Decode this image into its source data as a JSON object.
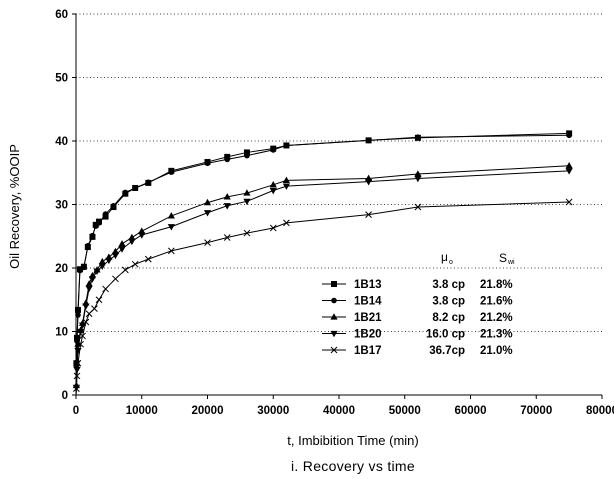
{
  "chart_data": {
    "type": "line",
    "title": "i. Recovery vs time",
    "xlabel": "t,  Imbibition Time (min)",
    "ylabel": "Oil Recovery, %OOIP",
    "xlim": [
      0,
      80000
    ],
    "ylim": [
      0,
      60
    ],
    "xticks": [
      "0",
      "10000",
      "20000",
      "30000",
      "40000",
      "50000",
      "60000",
      "70000",
      "80000"
    ],
    "yticks": [
      "0",
      "10",
      "20",
      "30",
      "40",
      "50",
      "60"
    ],
    "grid": "horizontal dotted",
    "legend_position": "bottom-right",
    "legend_headers": {
      "mu": "μ",
      "mu_sub": "o",
      "s": "S",
      "s_sub": "wi"
    },
    "series": [
      {
        "name": "1B13",
        "viscosity": "3.8 cp",
        "swi": "21.8%",
        "marker": "square",
        "points": [
          [
            0,
            0
          ],
          [
            60,
            5
          ],
          [
            150,
            9
          ],
          [
            300,
            13.4
          ],
          [
            600,
            19.8
          ],
          [
            1200,
            20.2
          ],
          [
            1800,
            23.3
          ],
          [
            2500,
            24.9
          ],
          [
            3000,
            26.8
          ],
          [
            3500,
            27.3
          ],
          [
            4500,
            28.1
          ],
          [
            5700,
            29.6
          ],
          [
            7500,
            31.7
          ],
          [
            9000,
            32.6
          ],
          [
            11000,
            33.4
          ],
          [
            14500,
            35.3
          ],
          [
            20000,
            36.7
          ],
          [
            23000,
            37.5
          ],
          [
            26000,
            38.2
          ],
          [
            30000,
            38.8
          ],
          [
            32000,
            39.3
          ],
          [
            44500,
            40.1
          ],
          [
            52000,
            40.5
          ],
          [
            75000,
            41.2
          ]
        ]
      },
      {
        "name": "1B14",
        "viscosity": "3.8 cp",
        "swi": "21.6%",
        "marker": "circle",
        "points": [
          [
            0,
            0
          ],
          [
            60,
            4.5
          ],
          [
            150,
            8.5
          ],
          [
            300,
            12.6
          ],
          [
            600,
            19.6
          ],
          [
            1200,
            20.1
          ],
          [
            1800,
            23.5
          ],
          [
            2500,
            25.1
          ],
          [
            3000,
            26.6
          ],
          [
            3500,
            27.1
          ],
          [
            4500,
            28.5
          ],
          [
            5700,
            29.8
          ],
          [
            7500,
            31.9
          ],
          [
            9000,
            32.6
          ],
          [
            11000,
            33.5
          ],
          [
            14500,
            35.1
          ],
          [
            20000,
            36.5
          ],
          [
            23000,
            37.1
          ],
          [
            26000,
            37.7
          ],
          [
            30000,
            38.6
          ],
          [
            32000,
            39.3
          ],
          [
            44500,
            40.1
          ],
          [
            52000,
            40.6
          ],
          [
            75000,
            40.9
          ]
        ]
      },
      {
        "name": "1B21",
        "viscosity": "8.2 cp",
        "swi": "21.2%",
        "marker": "triangle-up",
        "points": [
          [
            0,
            0
          ],
          [
            60,
            1.5
          ],
          [
            150,
            5
          ],
          [
            300,
            8
          ],
          [
            700,
            10.2
          ],
          [
            1000,
            11.3
          ],
          [
            1500,
            14.5
          ],
          [
            2000,
            17.5
          ],
          [
            2500,
            18.8
          ],
          [
            3200,
            19.7
          ],
          [
            4000,
            21
          ],
          [
            5000,
            21.7
          ],
          [
            6000,
            22.6
          ],
          [
            7000,
            23.8
          ],
          [
            8500,
            24.8
          ],
          [
            10000,
            25.8
          ],
          [
            14500,
            28.2
          ],
          [
            20000,
            30.3
          ],
          [
            23000,
            31.2
          ],
          [
            26000,
            31.8
          ],
          [
            30000,
            33.1
          ],
          [
            32000,
            33.8
          ],
          [
            44500,
            34.1
          ],
          [
            52000,
            34.8
          ],
          [
            75000,
            36.1
          ]
        ]
      },
      {
        "name": "1B20",
        "viscosity": "16.0 cp",
        "swi": "21.3%",
        "marker": "triangle-down",
        "points": [
          [
            0,
            0
          ],
          [
            60,
            1.2
          ],
          [
            150,
            4
          ],
          [
            300,
            7
          ],
          [
            700,
            10
          ],
          [
            1000,
            11
          ],
          [
            1500,
            14
          ],
          [
            2000,
            16.8
          ],
          [
            2500,
            18.3
          ],
          [
            3200,
            19.5
          ],
          [
            4000,
            20.3
          ],
          [
            5000,
            21.2
          ],
          [
            6000,
            22
          ],
          [
            7000,
            23
          ],
          [
            8500,
            24.2
          ],
          [
            10000,
            25.2
          ],
          [
            14500,
            26.5
          ],
          [
            20000,
            28.7
          ],
          [
            23000,
            29.8
          ],
          [
            26000,
            30.5
          ],
          [
            30000,
            32.2
          ],
          [
            32000,
            32.9
          ],
          [
            44500,
            33.6
          ],
          [
            52000,
            34.1
          ],
          [
            75000,
            35.3
          ]
        ]
      },
      {
        "name": "1B17",
        "viscosity": "36.7cp",
        "swi": "21.0%",
        "marker": "x",
        "points": [
          [
            0,
            0
          ],
          [
            60,
            1
          ],
          [
            150,
            3
          ],
          [
            300,
            5
          ],
          [
            700,
            8
          ],
          [
            1000,
            9.3
          ],
          [
            1500,
            11.5
          ],
          [
            2000,
            12.8
          ],
          [
            2800,
            13.6
          ],
          [
            3500,
            15
          ],
          [
            4500,
            16.7
          ],
          [
            6000,
            18.3
          ],
          [
            7500,
            19.7
          ],
          [
            9000,
            20.6
          ],
          [
            11000,
            21.4
          ],
          [
            14500,
            22.7
          ],
          [
            20000,
            24
          ],
          [
            23000,
            24.8
          ],
          [
            26000,
            25.5
          ],
          [
            30000,
            26.3
          ],
          [
            32000,
            27.1
          ],
          [
            44500,
            28.4
          ],
          [
            52000,
            29.6
          ],
          [
            75000,
            30.4
          ]
        ]
      }
    ]
  }
}
